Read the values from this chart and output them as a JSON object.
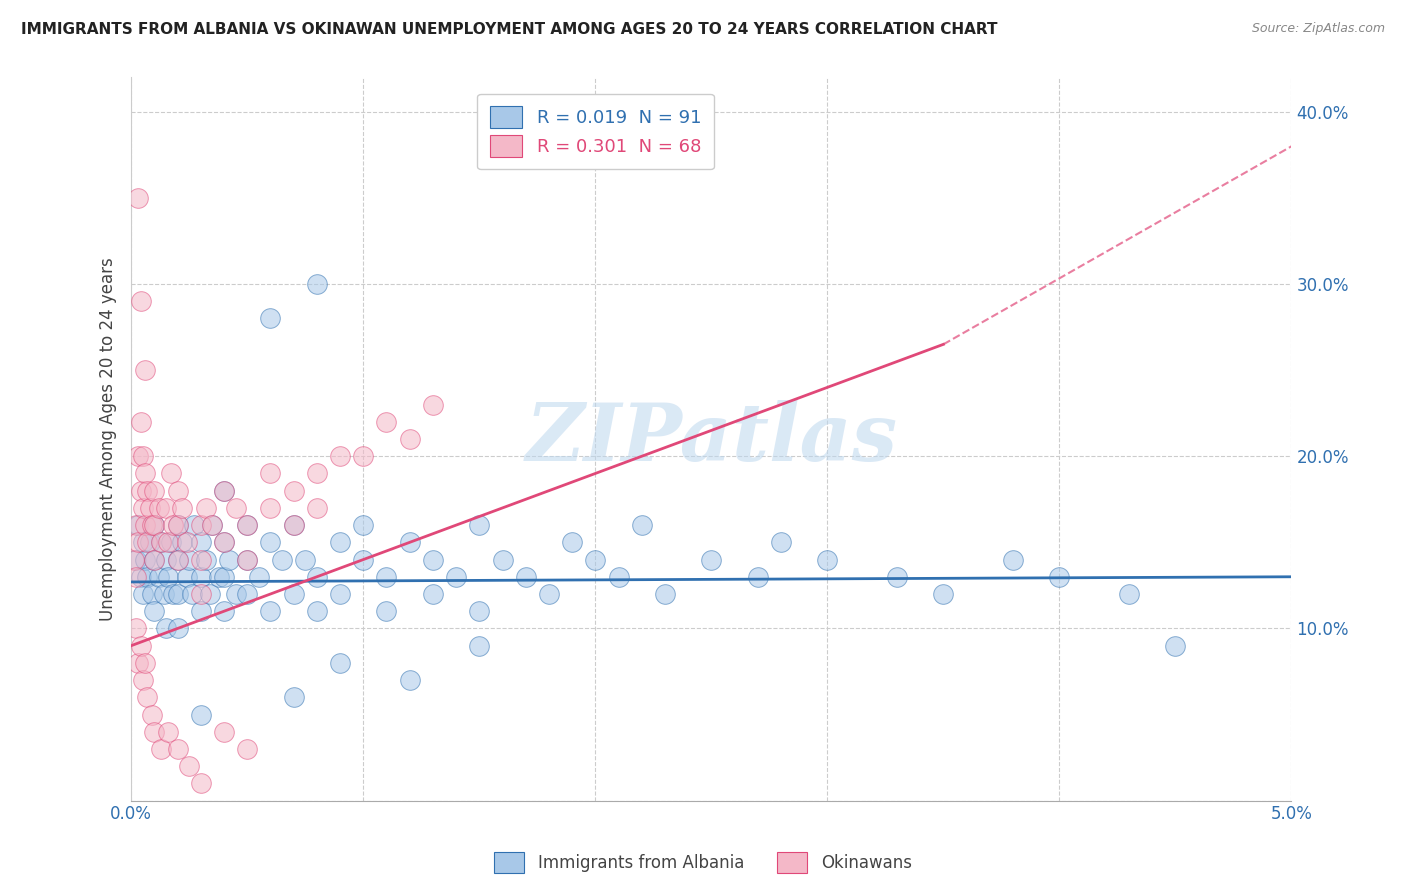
{
  "title": "IMMIGRANTS FROM ALBANIA VS OKINAWAN UNEMPLOYMENT AMONG AGES 20 TO 24 YEARS CORRELATION CHART",
  "source": "Source: ZipAtlas.com",
  "ylabel": "Unemployment Among Ages 20 to 24 years",
  "legend_blue_r": "R = 0.019",
  "legend_blue_n": "N = 91",
  "legend_pink_r": "R = 0.301",
  "legend_pink_n": "N = 68",
  "legend_label_blue": "Immigrants from Albania",
  "legend_label_pink": "Okinawans",
  "watermark": "ZIPatlas",
  "blue_color": "#a8c8e8",
  "pink_color": "#f4b8c8",
  "blue_line_color": "#3070b0",
  "pink_line_color": "#e04878",
  "r_blue": 0.019,
  "r_pink": 0.301,
  "xlim": [
    0.0,
    0.05
  ],
  "ylim": [
    0.0,
    0.42
  ],
  "blue_scatter_x": [
    0.0002,
    0.0003,
    0.0004,
    0.0005,
    0.0005,
    0.0006,
    0.0007,
    0.0008,
    0.0009,
    0.001,
    0.001,
    0.001,
    0.0012,
    0.0013,
    0.0014,
    0.0015,
    0.0015,
    0.0016,
    0.0017,
    0.0018,
    0.002,
    0.002,
    0.002,
    0.002,
    0.0022,
    0.0024,
    0.0025,
    0.0026,
    0.0027,
    0.003,
    0.003,
    0.003,
    0.0032,
    0.0034,
    0.0035,
    0.0038,
    0.004,
    0.004,
    0.004,
    0.0042,
    0.0045,
    0.005,
    0.005,
    0.005,
    0.0055,
    0.006,
    0.006,
    0.0065,
    0.007,
    0.007,
    0.0075,
    0.008,
    0.008,
    0.009,
    0.009,
    0.01,
    0.01,
    0.011,
    0.011,
    0.012,
    0.013,
    0.013,
    0.014,
    0.015,
    0.015,
    0.016,
    0.017,
    0.018,
    0.019,
    0.02,
    0.021,
    0.022,
    0.023,
    0.025,
    0.027,
    0.028,
    0.03,
    0.033,
    0.035,
    0.038,
    0.04,
    0.043,
    0.045,
    0.004,
    0.006,
    0.008,
    0.012,
    0.015,
    0.009,
    0.007,
    0.003
  ],
  "blue_scatter_y": [
    0.14,
    0.16,
    0.13,
    0.15,
    0.12,
    0.14,
    0.13,
    0.15,
    0.12,
    0.16,
    0.14,
    0.11,
    0.13,
    0.15,
    0.12,
    0.14,
    0.1,
    0.13,
    0.15,
    0.12,
    0.16,
    0.14,
    0.12,
    0.1,
    0.15,
    0.13,
    0.14,
    0.12,
    0.16,
    0.15,
    0.13,
    0.11,
    0.14,
    0.12,
    0.16,
    0.13,
    0.15,
    0.13,
    0.11,
    0.14,
    0.12,
    0.16,
    0.14,
    0.12,
    0.13,
    0.15,
    0.11,
    0.14,
    0.16,
    0.12,
    0.14,
    0.13,
    0.11,
    0.15,
    0.12,
    0.14,
    0.16,
    0.13,
    0.11,
    0.15,
    0.14,
    0.12,
    0.13,
    0.16,
    0.11,
    0.14,
    0.13,
    0.12,
    0.15,
    0.14,
    0.13,
    0.16,
    0.12,
    0.14,
    0.13,
    0.15,
    0.14,
    0.13,
    0.12,
    0.14,
    0.13,
    0.12,
    0.09,
    0.18,
    0.28,
    0.3,
    0.07,
    0.09,
    0.08,
    0.06,
    0.05
  ],
  "pink_scatter_x": [
    0.0001,
    0.0002,
    0.0002,
    0.0003,
    0.0003,
    0.0004,
    0.0004,
    0.0005,
    0.0005,
    0.0006,
    0.0006,
    0.0007,
    0.0007,
    0.0008,
    0.0009,
    0.001,
    0.001,
    0.001,
    0.0012,
    0.0013,
    0.0015,
    0.0016,
    0.0017,
    0.0018,
    0.002,
    0.002,
    0.002,
    0.0022,
    0.0024,
    0.003,
    0.003,
    0.003,
    0.0032,
    0.0035,
    0.004,
    0.004,
    0.0045,
    0.005,
    0.005,
    0.006,
    0.006,
    0.007,
    0.007,
    0.008,
    0.008,
    0.009,
    0.01,
    0.011,
    0.012,
    0.013,
    0.0002,
    0.0003,
    0.0004,
    0.0005,
    0.0006,
    0.0007,
    0.0009,
    0.001,
    0.0013,
    0.0016,
    0.002,
    0.0025,
    0.003,
    0.004,
    0.005,
    0.0004,
    0.0006,
    0.0003
  ],
  "pink_scatter_y": [
    0.14,
    0.16,
    0.13,
    0.15,
    0.2,
    0.18,
    0.22,
    0.17,
    0.2,
    0.19,
    0.16,
    0.18,
    0.15,
    0.17,
    0.16,
    0.18,
    0.16,
    0.14,
    0.17,
    0.15,
    0.17,
    0.15,
    0.19,
    0.16,
    0.18,
    0.16,
    0.14,
    0.17,
    0.15,
    0.16,
    0.14,
    0.12,
    0.17,
    0.16,
    0.18,
    0.15,
    0.17,
    0.16,
    0.14,
    0.19,
    0.17,
    0.18,
    0.16,
    0.19,
    0.17,
    0.2,
    0.2,
    0.22,
    0.21,
    0.23,
    0.1,
    0.08,
    0.09,
    0.07,
    0.08,
    0.06,
    0.05,
    0.04,
    0.03,
    0.04,
    0.03,
    0.02,
    0.01,
    0.04,
    0.03,
    0.29,
    0.25,
    0.35
  ]
}
